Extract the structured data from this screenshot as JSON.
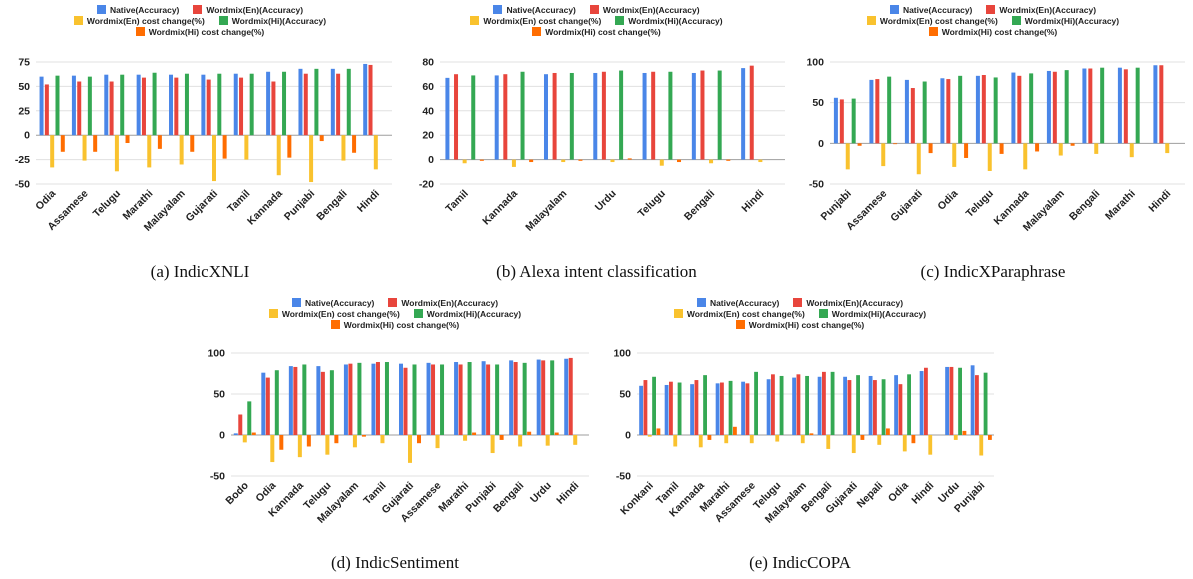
{
  "colors": {
    "native": "#4a86e8",
    "wm_en": "#e8453c",
    "wm_en_cost": "#f9c22e",
    "wm_hi": "#34a853",
    "wm_hi_cost": "#ff6d01",
    "grid": "#e0e0e0",
    "axis_text": "#222222"
  },
  "legend": {
    "native": "Native(Accuracy)",
    "wm_en": "Wordmix(En)(Accuracy)",
    "wm_en_cost": "Wordmix(En) cost change(%)",
    "wm_hi": "Wordmix(Hi)(Accuracy)",
    "wm_hi_cost": "Wordmix(Hi) cost change(%)"
  },
  "chart_data": [
    {
      "type": "bar",
      "caption": "(a) IndicXNLI",
      "ylim": [
        -50,
        75
      ],
      "yticks": [
        -50,
        -25,
        0,
        25,
        50,
        75
      ],
      "grid": true,
      "legend_position": "top",
      "categories": [
        "Odia",
        "Assamese",
        "Telugu",
        "Marathi",
        "Malayalam",
        "Gujarati",
        "Tamil",
        "Kannada",
        "Punjabi",
        "Bengali",
        "Hindi"
      ],
      "series": [
        {
          "name": "Native(Accuracy)",
          "key": "native",
          "values": [
            60,
            61,
            62,
            62,
            62,
            62,
            63,
            65,
            68,
            68,
            73
          ]
        },
        {
          "name": "Wordmix(En)(Accuracy)",
          "key": "wm_en",
          "values": [
            52,
            55,
            55,
            59,
            59,
            57,
            59,
            55,
            63,
            63,
            72
          ]
        },
        {
          "name": "Wordmix(En) cost change(%)",
          "key": "wm_en_cost",
          "values": [
            -33,
            -26,
            -37,
            -33,
            -30,
            -47,
            -25,
            -41,
            -48,
            -26,
            -35
          ]
        },
        {
          "name": "Wordmix(Hi)(Accuracy)",
          "key": "wm_hi",
          "values": [
            61,
            60,
            62,
            64,
            63,
            63,
            63,
            65,
            68,
            68,
            0
          ]
        },
        {
          "name": "Wordmix(Hi) cost change(%)",
          "key": "wm_hi_cost",
          "values": [
            -17,
            -17,
            -8,
            -14,
            -17,
            -24,
            0,
            -23,
            -6,
            -18,
            0
          ]
        }
      ]
    },
    {
      "type": "bar",
      "caption": "(b) Alexa intent classification",
      "ylim": [
        -20,
        80
      ],
      "yticks": [
        -20,
        0,
        20,
        40,
        60,
        80
      ],
      "grid": true,
      "legend_position": "top",
      "categories": [
        "Tamil",
        "Kannada",
        "Malayalam",
        "Urdu",
        "Telugu",
        "Bengali",
        "Hindi"
      ],
      "series": [
        {
          "name": "Native(Accuracy)",
          "key": "native",
          "values": [
            67,
            69,
            70,
            71,
            71,
            71,
            75
          ]
        },
        {
          "name": "Wordmix(En)(Accuracy)",
          "key": "wm_en",
          "values": [
            70,
            70,
            71,
            72,
            72,
            73,
            77
          ]
        },
        {
          "name": "Wordmix(En) cost change(%)",
          "key": "wm_en_cost",
          "values": [
            -3,
            -6,
            -2,
            -2,
            -5,
            -3,
            -2
          ]
        },
        {
          "name": "Wordmix(Hi)(Accuracy)",
          "key": "wm_hi",
          "values": [
            69,
            72,
            71,
            73,
            72,
            73,
            0
          ]
        },
        {
          "name": "Wordmix(Hi) cost change(%)",
          "key": "wm_hi_cost",
          "values": [
            -1,
            -2,
            -1,
            1,
            -2,
            -1,
            0
          ]
        }
      ]
    },
    {
      "type": "bar",
      "caption": "(c) IndicXParaphrase",
      "ylim": [
        -50,
        100
      ],
      "yticks": [
        -50,
        0,
        50,
        100
      ],
      "grid": true,
      "legend_position": "top",
      "categories": [
        "Punjabi",
        "Assamese",
        "Gujarati",
        "Odia",
        "Telugu",
        "Kannada",
        "Malayalam",
        "Bengali",
        "Marathi",
        "Hindi"
      ],
      "series": [
        {
          "name": "Native(Accuracy)",
          "key": "native",
          "values": [
            56,
            78,
            78,
            80,
            83,
            87,
            89,
            92,
            93,
            96
          ]
        },
        {
          "name": "Wordmix(En)(Accuracy)",
          "key": "wm_en",
          "values": [
            54,
            79,
            68,
            79,
            84,
            83,
            88,
            92,
            91,
            96
          ]
        },
        {
          "name": "Wordmix(En) cost change(%)",
          "key": "wm_en_cost",
          "values": [
            -32,
            -28,
            -38,
            -29,
            -34,
            -32,
            -15,
            -13,
            -17,
            -12
          ]
        },
        {
          "name": "Wordmix(Hi)(Accuracy)",
          "key": "wm_hi",
          "values": [
            55,
            82,
            76,
            83,
            81,
            86,
            90,
            93,
            93,
            0
          ]
        },
        {
          "name": "Wordmix(Hi) cost change(%)",
          "key": "wm_hi_cost",
          "values": [
            -3,
            -1,
            -12,
            -18,
            -13,
            -10,
            -3,
            0,
            0,
            0
          ]
        }
      ]
    },
    {
      "type": "bar",
      "caption": "(d) IndicSentiment",
      "ylim": [
        -50,
        100
      ],
      "yticks": [
        -50,
        0,
        50,
        100
      ],
      "grid": true,
      "legend_position": "top",
      "categories": [
        "Bodo",
        "Odia",
        "Kannada",
        "Telugu",
        "Malayalam",
        "Tamil",
        "Gujarati",
        "Assamese",
        "Marathi",
        "Punjabi",
        "Bengali",
        "Urdu",
        "Hindi"
      ],
      "series": [
        {
          "name": "Native(Accuracy)",
          "key": "native",
          "values": [
            2,
            76,
            84,
            84,
            86,
            87,
            87,
            88,
            89,
            90,
            91,
            92,
            93
          ]
        },
        {
          "name": "Wordmix(En)(Accuracy)",
          "key": "wm_en",
          "values": [
            25,
            70,
            83,
            77,
            87,
            89,
            82,
            86,
            86,
            86,
            89,
            91,
            94
          ]
        },
        {
          "name": "Wordmix(En) cost change(%)",
          "key": "wm_en_cost",
          "values": [
            -9,
            -33,
            -27,
            -24,
            -15,
            -10,
            -34,
            -16,
            -7,
            -22,
            -14,
            -13,
            -12
          ]
        },
        {
          "name": "Wordmix(Hi)(Accuracy)",
          "key": "wm_hi",
          "values": [
            41,
            79,
            86,
            79,
            88,
            89,
            86,
            86,
            89,
            86,
            88,
            91,
            0
          ]
        },
        {
          "name": "Wordmix(Hi) cost change(%)",
          "key": "wm_hi_cost",
          "values": [
            3,
            -18,
            -14,
            -10,
            -2,
            0,
            -10,
            0,
            3,
            -6,
            4,
            3,
            0
          ]
        }
      ]
    },
    {
      "type": "bar",
      "caption": "(e) IndicCOPA",
      "ylim": [
        -50,
        100
      ],
      "yticks": [
        -50,
        0,
        50,
        100
      ],
      "grid": true,
      "legend_position": "top",
      "categories": [
        "Konkani",
        "Tamil",
        "Kannada",
        "Marathi",
        "Assamese",
        "Telugu",
        "Malayalam",
        "Bengali",
        "Gujarati",
        "Nepali",
        "Odia",
        "Hindi",
        "Urdu",
        "Punjabi"
      ],
      "series": [
        {
          "name": "Native(Accuracy)",
          "key": "native",
          "values": [
            60,
            61,
            62,
            63,
            65,
            68,
            70,
            71,
            71,
            72,
            73,
            78,
            83,
            85
          ]
        },
        {
          "name": "Wordmix(En)(Accuracy)",
          "key": "wm_en",
          "values": [
            67,
            65,
            67,
            64,
            63,
            74,
            74,
            77,
            67,
            67,
            62,
            82,
            83,
            73
          ]
        },
        {
          "name": "Wordmix(En) cost change(%)",
          "key": "wm_en_cost",
          "values": [
            -2,
            -14,
            -15,
            -10,
            -10,
            -8,
            -10,
            -17,
            -22,
            -12,
            -20,
            -24,
            -6,
            -25
          ]
        },
        {
          "name": "Wordmix(Hi)(Accuracy)",
          "key": "wm_hi",
          "values": [
            71,
            64,
            73,
            66,
            77,
            72,
            72,
            77,
            73,
            68,
            74,
            0,
            82,
            76
          ]
        },
        {
          "name": "Wordmix(Hi) cost change(%)",
          "key": "wm_hi_cost",
          "values": [
            8,
            0,
            -6,
            10,
            0,
            0,
            2,
            0,
            -6,
            8,
            -10,
            0,
            5,
            -6
          ]
        }
      ]
    }
  ]
}
